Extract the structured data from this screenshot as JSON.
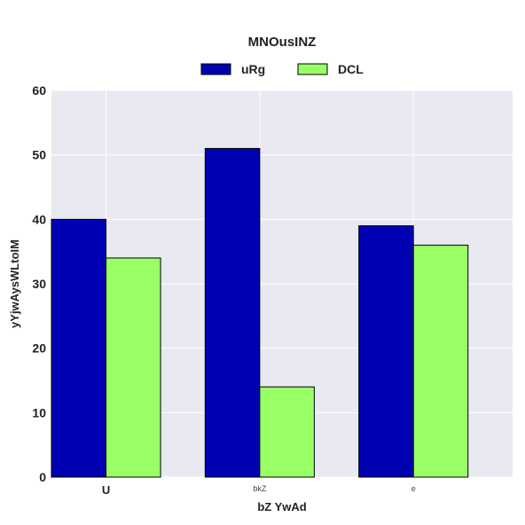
{
  "chart_data": {
    "type": "bar",
    "title": "MNOusINZ",
    "xlabel": "bZ YwAd",
    "ylabel": "yYjwAysWLtoIM",
    "categories": [
      "U",
      "bkZ",
      "e"
    ],
    "series": [
      {
        "name": "uRg",
        "values": [
          40,
          51,
          39
        ],
        "color": "#0000b3"
      },
      {
        "name": "DCL",
        "values": [
          34,
          14,
          36
        ],
        "color": "#99ff66"
      }
    ],
    "ylim": [
      0,
      60
    ],
    "yticks": [
      0,
      10,
      20,
      30,
      40,
      50,
      60
    ],
    "grid": true,
    "legend_position": "top-center",
    "background_color": "#e9e9f1"
  }
}
